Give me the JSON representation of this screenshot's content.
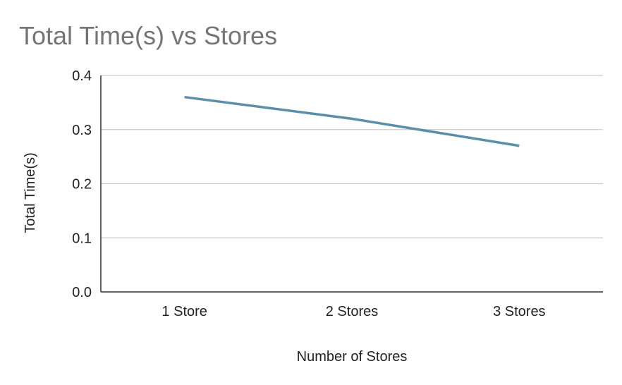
{
  "chart_data": {
    "type": "line",
    "title": "Total Time(s) vs Stores",
    "xlabel": "Number of Stores",
    "ylabel": "Total Time(s)",
    "categories": [
      "1 Store",
      "2 Stores",
      "3 Stores"
    ],
    "series": [
      {
        "values": [
          0.36,
          0.32,
          0.27
        ],
        "color": "#5b8fa8"
      }
    ],
    "ylim": [
      0,
      0.4
    ],
    "yticks": [
      "0.0",
      "0.1",
      "0.2",
      "0.3",
      "0.4"
    ],
    "grid": true,
    "legend": "none"
  }
}
